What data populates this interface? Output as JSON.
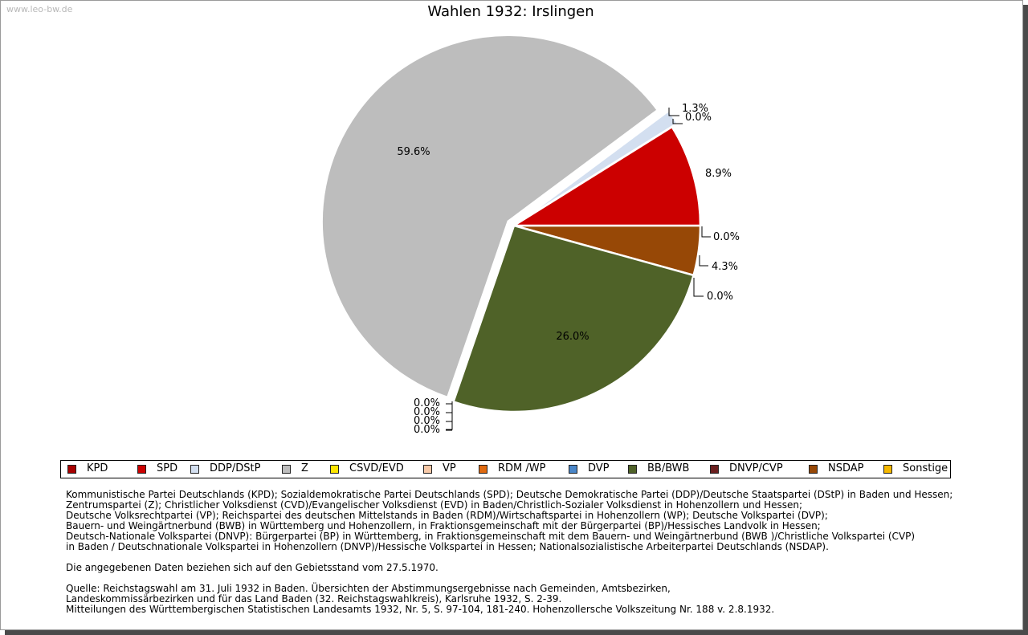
{
  "watermark": "www.leo-bw.de",
  "chart_data": {
    "type": "pie",
    "title": "Wahlen 1932: Irslingen",
    "slices": [
      {
        "label": "KPD",
        "value": 0.0,
        "color": "#a80000"
      },
      {
        "label": "SPD",
        "value": 8.9,
        "color": "#cc0000"
      },
      {
        "label": "DDP/DStP",
        "value": 1.3,
        "color": "#d3dff0"
      },
      {
        "label": "Z",
        "value": 59.6,
        "color": "#bdbdbd"
      },
      {
        "label": "CSVD/EVD",
        "value": 0.0,
        "color": "#ffe600"
      },
      {
        "label": "VP",
        "value": 0.0,
        "color": "#f7c9a8"
      },
      {
        "label": "RDM /WP",
        "value": 0.0,
        "color": "#e06a10"
      },
      {
        "label": "DVP",
        "value": 0.0,
        "color": "#4a86c8"
      },
      {
        "label": "BB/BWB",
        "value": 26.0,
        "color": "#4f6228"
      },
      {
        "label": "DNVP/CVP",
        "value": 0.0,
        "color": "#6b1f1f"
      },
      {
        "label": "NSDAP",
        "value": 4.3,
        "color": "#974806"
      },
      {
        "label": "Sonstige",
        "value": 0.0,
        "color": "#f5b800"
      }
    ],
    "slice_labels": [
      "0.0%",
      "8.9%",
      "1.3%",
      "59.6%",
      "0.0%",
      "0.0%",
      "0.0%",
      "0.0%",
      "26.0%",
      "0.0%",
      "4.3%",
      "0.0%"
    ],
    "legend_position": "bottom"
  },
  "notes": {
    "parties_lines": [
      "Kommunistische Partei Deutschlands (KPD); Sozialdemokratische Partei Deutschlands (SPD); Deutsche Demokratische Partei (DDP)/Deutsche Staatspartei (DStP) in Baden und Hessen;",
      "Zentrumspartei (Z); Christlicher Volksdienst (CVD)/Evangelischer Volksdienst (EVD) in Baden/Christlich-Sozialer Volksdienst in Hohenzollern und Hessen;",
      "Deutsche Volksrechtpartei (VP); Reichspartei des deutschen Mittelstands in Baden (RDM)/Wirtschaftspartei in Hohenzollern (WP); Deutsche Volkspartei (DVP);",
      "Bauern- und Weingärtnerbund (BWB) in Württemberg und Hohenzollern, in Fraktionsgemeinschaft mit der Bürgerpartei (BP)/Hessisches Landvolk in Hessen;",
      "Deutsch-Nationale Volkspartei (DNVP): Bürgerpartei (BP) in Württemberg, in Fraktionsgemeinschaft mit dem Bauern- und Weingärtnerbund (BWB )/Christliche Volkspartei (CVP)",
      "in Baden / Deutschnationale Volkspartei in Hohenzollern (DNVP)/Hessische Volkspartei in Hessen; Nationalsozialistische Arbeiterpartei Deutschlands (NSDAP)."
    ],
    "territory": "Die angegebenen Daten beziehen sich auf den Gebietsstand vom 27.5.1970.",
    "source_lines": [
      "Quelle: Reichstagswahl am 31. Juli 1932 in Baden. Übersichten der Abstimmungsergebnisse nach Gemeinden, Amtsbezirken,",
      "Landeskommissärbezirken und für das Land Baden (32. Reichstagswahlkreis), Karlsruhe 1932, S. 2-39.",
      "Mitteilungen des Württembergischen Statistischen Landesamts 1932, Nr. 5, S. 97-104, 181-240. Hohenzollersche Volkszeitung Nr. 188 v. 2.8.1932."
    ]
  }
}
